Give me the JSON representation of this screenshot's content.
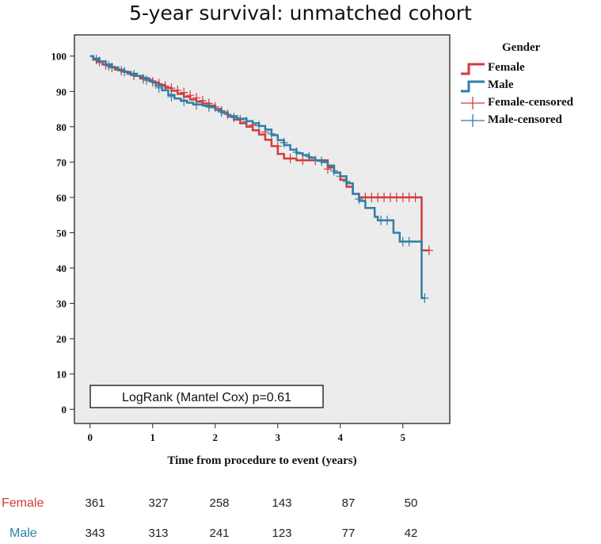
{
  "chart_data": {
    "type": "line",
    "title": "5-year survival: unmatched cohort",
    "xlabel": "Time from procedure to event (years)",
    "ylabel": "",
    "xlim": [
      -0.25,
      5.75
    ],
    "ylim": [
      -4,
      106
    ],
    "xticks": [
      0,
      1,
      2,
      3,
      4,
      5
    ],
    "yticks": [
      0,
      10,
      20,
      30,
      40,
      50,
      60,
      70,
      80,
      90,
      100
    ],
    "colors": {
      "Female": "#d43a3a",
      "Male": "#2f7fa6"
    },
    "legend": {
      "title": "Gender",
      "items": [
        "Female",
        "Male",
        "Female-censored",
        "Male-censored"
      ]
    },
    "series": [
      {
        "name": "Female",
        "steps": [
          [
            0,
            100
          ],
          [
            0.05,
            99
          ],
          [
            0.12,
            98.3
          ],
          [
            0.2,
            97.6
          ],
          [
            0.3,
            96.9
          ],
          [
            0.4,
            96.2
          ],
          [
            0.5,
            95.6
          ],
          [
            0.6,
            95
          ],
          [
            0.7,
            94.4
          ],
          [
            0.8,
            93.8
          ],
          [
            0.9,
            93.2
          ],
          [
            1.0,
            92.5
          ],
          [
            1.1,
            91.8
          ],
          [
            1.2,
            91
          ],
          [
            1.3,
            90.2
          ],
          [
            1.4,
            89.3
          ],
          [
            1.5,
            88.5
          ],
          [
            1.6,
            87.7
          ],
          [
            1.7,
            87.1
          ],
          [
            1.8,
            86.6
          ],
          [
            1.9,
            86
          ],
          [
            2.0,
            85
          ],
          [
            2.1,
            84
          ],
          [
            2.2,
            83
          ],
          [
            2.3,
            82
          ],
          [
            2.4,
            81
          ],
          [
            2.5,
            80
          ],
          [
            2.6,
            79
          ],
          [
            2.7,
            77.8
          ],
          [
            2.8,
            76.3
          ],
          [
            2.9,
            74.5
          ],
          [
            3.0,
            72.3
          ],
          [
            3.1,
            71
          ],
          [
            3.3,
            70.5
          ],
          [
            3.6,
            70.5
          ],
          [
            3.8,
            68.5
          ],
          [
            3.9,
            67
          ],
          [
            4.0,
            65
          ],
          [
            4.1,
            63
          ],
          [
            4.2,
            61
          ],
          [
            4.3,
            60
          ],
          [
            5.3,
            60
          ],
          [
            5.3,
            45
          ],
          [
            5.42,
            45
          ]
        ],
        "censored": [
          [
            0.15,
            98.5
          ],
          [
            0.25,
            97.5
          ],
          [
            0.35,
            96.8
          ],
          [
            0.5,
            95.8
          ],
          [
            0.7,
            94.5
          ],
          [
            0.85,
            93.5
          ],
          [
            1.0,
            92.7
          ],
          [
            1.1,
            92.2
          ],
          [
            1.2,
            91.5
          ],
          [
            1.3,
            90.9
          ],
          [
            1.4,
            90.3
          ],
          [
            1.5,
            89.7
          ],
          [
            1.6,
            88.9
          ],
          [
            1.7,
            88.2
          ],
          [
            1.8,
            87.4
          ],
          [
            1.9,
            86.6
          ],
          [
            2.0,
            85.6
          ],
          [
            2.1,
            84.5
          ],
          [
            2.2,
            83.5
          ],
          [
            2.4,
            82
          ],
          [
            2.6,
            80.5
          ],
          [
            2.8,
            78.5
          ],
          [
            3.0,
            74.5
          ],
          [
            3.2,
            71
          ],
          [
            3.4,
            70.5
          ],
          [
            3.6,
            70.5
          ],
          [
            3.8,
            68
          ],
          [
            4.0,
            66
          ],
          [
            4.4,
            60
          ],
          [
            4.5,
            60
          ],
          [
            4.6,
            60
          ],
          [
            4.7,
            60
          ],
          [
            4.8,
            60
          ],
          [
            4.9,
            60
          ],
          [
            5.0,
            60
          ],
          [
            5.1,
            60
          ],
          [
            5.2,
            60
          ],
          [
            5.42,
            45
          ]
        ]
      },
      {
        "name": "Male",
        "steps": [
          [
            0,
            100
          ],
          [
            0.05,
            99.3
          ],
          [
            0.15,
            98.5
          ],
          [
            0.25,
            97.6
          ],
          [
            0.35,
            96.8
          ],
          [
            0.45,
            96.1
          ],
          [
            0.55,
            95.5
          ],
          [
            0.65,
            95
          ],
          [
            0.75,
            94.4
          ],
          [
            0.85,
            93.7
          ],
          [
            0.95,
            92.8
          ],
          [
            1.05,
            91.6
          ],
          [
            1.15,
            90.3
          ],
          [
            1.25,
            89
          ],
          [
            1.35,
            88
          ],
          [
            1.45,
            87.4
          ],
          [
            1.55,
            86.8
          ],
          [
            1.65,
            86.3
          ],
          [
            1.8,
            86
          ],
          [
            1.9,
            85.5
          ],
          [
            2.0,
            84.8
          ],
          [
            2.1,
            84
          ],
          [
            2.2,
            83
          ],
          [
            2.35,
            82.3
          ],
          [
            2.5,
            81.6
          ],
          [
            2.6,
            81
          ],
          [
            2.7,
            80.2
          ],
          [
            2.8,
            79.2
          ],
          [
            2.9,
            77.6
          ],
          [
            3.0,
            76.2
          ],
          [
            3.1,
            74.8
          ],
          [
            3.2,
            73.5
          ],
          [
            3.3,
            72.5
          ],
          [
            3.4,
            72
          ],
          [
            3.5,
            71.2
          ],
          [
            3.6,
            70.5
          ],
          [
            3.7,
            70
          ],
          [
            3.8,
            69
          ],
          [
            3.9,
            67
          ],
          [
            4.0,
            66
          ],
          [
            4.1,
            64
          ],
          [
            4.2,
            61
          ],
          [
            4.3,
            59
          ],
          [
            4.4,
            57
          ],
          [
            4.55,
            54.5
          ],
          [
            4.6,
            53.5
          ],
          [
            4.85,
            50
          ],
          [
            4.95,
            47.5
          ],
          [
            5.2,
            47.5
          ],
          [
            5.3,
            31.5
          ],
          [
            5.35,
            31.5
          ]
        ],
        "censored": [
          [
            0.1,
            99
          ],
          [
            0.3,
            97.2
          ],
          [
            0.55,
            95.6
          ],
          [
            0.7,
            94.7
          ],
          [
            0.9,
            93.2
          ],
          [
            1.1,
            91
          ],
          [
            1.3,
            88.5
          ],
          [
            1.5,
            87.2
          ],
          [
            1.7,
            86.2
          ],
          [
            1.9,
            85.6
          ],
          [
            2.1,
            84.2
          ],
          [
            2.3,
            82.6
          ],
          [
            2.5,
            81.5
          ],
          [
            2.7,
            80.3
          ],
          [
            2.9,
            78
          ],
          [
            3.1,
            75.5
          ],
          [
            3.3,
            72.8
          ],
          [
            3.5,
            71.5
          ],
          [
            3.7,
            70.2
          ],
          [
            3.9,
            67.5
          ],
          [
            4.1,
            64.5
          ],
          [
            4.3,
            59.5
          ],
          [
            4.65,
            53.5
          ],
          [
            4.75,
            53.5
          ],
          [
            5.0,
            47.5
          ],
          [
            5.1,
            47.5
          ],
          [
            5.35,
            31.5
          ]
        ]
      }
    ],
    "annotation": "LogRank (Mantel Cox) p=0.61",
    "risk_table": {
      "rows": [
        {
          "label": "Female",
          "values": [
            "361",
            "327",
            "258",
            "143",
            "87",
            "50"
          ]
        },
        {
          "label": "Male",
          "values": [
            "343",
            "313",
            "241",
            "123",
            "77",
            "42"
          ]
        }
      ]
    }
  }
}
